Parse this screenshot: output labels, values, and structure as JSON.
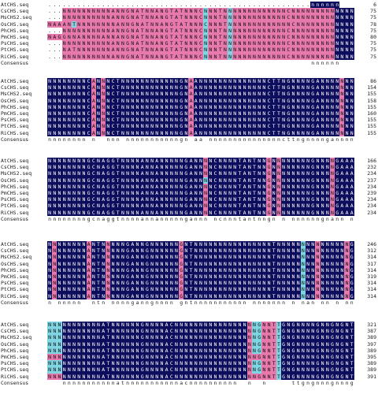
{
  "colors": {
    "identical": "#0d0d5e",
    "similar": "#e879ad",
    "partial": "#7fd6e3",
    "none": "#ffffff",
    "identical_text": "#ffffff",
    "other_text": "#111111"
  },
  "consensus_label": "Consensus",
  "blocks": [
    {
      "rows": [
        {
          "name": "AtCHS.seq",
          "seq": "......................................................nnnnnn",
          "end": "6"
        },
        {
          "name": "CsCHS.seq",
          "seq": "...NNNNNNNNNNANNGNATNNANGTATNNNCNNNTNNNNNNNNNNNNNCNNNNNNNNNNNNN",
          "end": "75"
        },
        {
          "name": "MsCHS2.seq",
          "seq": "...NNNNNNNNNNANNGNATNNANGTATNNNCNNNTNNNNNNNNNNNNNCNNNNNNNNNNNNN",
          "end": "75"
        },
        {
          "name": "OsCHS.seq",
          "seq": "NAAANTNNNNNNNNANNGNATNNANGTATNNNCNNNTNNNNNNNNNNNNNCNNNNNNNNNNNNN",
          "end": "78"
        },
        {
          "name": "PhCHS.seq",
          "seq": "...NNNNNNNNNNANNGNATNNANGTATNNNCNNNTNNNNNNNNNNNNNCNNNNNNNNNNNNN",
          "end": "75"
        },
        {
          "name": "PmCHS.seq",
          "seq": "NAGGNNANNNNANNANGNATNNANGTATNNNCNNNTNNNNNNNNNNNNNCNNNNNNNNNNNNN",
          "end": "80"
        },
        {
          "name": "PsCHS.seq",
          "seq": "...NNNNNNNNNNANNGNATNNANGTATNNNCNNNTNNNNNNNNNNNNNCNNNNNNNNNNNNN",
          "end": "75"
        },
        {
          "name": "PtCHS.seq",
          "seq": "...NATNNNNNNNANNGNATNNANGTATNNNCNNNTNNNNNNNNNNNNNCNNNNNNNNNNNNN",
          "end": "75"
        },
        {
          "name": "RiCHS.seq",
          "seq": "...NNNNNNNNNNANNGNATNNANGTATNNNCNNNTNNNNNNNNNNNNNCNNNNNNNNNNNNN",
          "end": "75"
        }
      ],
      "consensus": "                                                      nnnnnn",
      "pattern": [
        "......................................................IIIIII",
        "...PPPPPPPPPPPPPPPPPPPPPPPPPPPPPTPPPPTPPPPPPPPPPPPPPPPPPPPPIIIIII",
        "...PPPPPPPPPPPPPPPPPPPPPPPPPPPPPTPPPPTPPPPPPPPPPPPPPPPPPPPPIIIIII",
        "PPPPPTPPPPPPPPPPPPPPPPPPPPPPPPPPTPPPPTPPPPPPPPPPPPPPPPPPPPPIIIIII",
        "...PPPPPPPPPPPPPPPPPPPPPPPPPPPPPTPPPPTPPPPPPPPPPPPPPPPPPPPPIIIIII",
        "PPPPPPPPPPPPPPPPPPPPPPPPPPPPPPPPTPPPPTPPPPPPPPPPPPPPPPPPPPPIIIIII",
        "...PPPPPPPPPPPPPPPPPPPPPPPPPPPPPTPPPPTPPPPPPPPPPPPPPPPPPPPPIIIIII",
        "...PPPPPPPPPPPPPPPPPPPPPPPPPPPPPTPPPPTPPPPPPPPPPPPPPPPPPPPPIIIIII",
        "...PPPPPPPPPPPPPPPPPPPPPPPPPPPPPTPPPPTPPPPPPPPPPPPPPPPPPPPPIIIIII"
      ]
    },
    {
      "rows": [
        {
          "name": "AtCHS.seq",
          "seq": "NNNNNNNNCANNNCTNNNNNNNNNNNNGNAANNNNNNNNNNNNNNCTTNGNNNNGANNNNNNNNNNNN",
          "end": "86"
        },
        {
          "name": "CsCHS.seq",
          "seq": "NNNNNNNNCANNNCTNNNNNNNNNNNNGNAANNNNNNNNNNNNNNCTTNGNNNNGANNNNNNNNNNNN",
          "end": "154"
        },
        {
          "name": "MsCHS2.seq",
          "seq": "NNNNNNNNCANNNCTNNNNNNNNNNNNGNAANNNNNNNNNNNNNNCTTNGNNNNGANNNNNNNNNNNN",
          "end": "155"
        },
        {
          "name": "OsCHS.seq",
          "seq": "NNNNNNNNCANNNCTNNNNNNNNNNNNGNAANNNNNNNNNNNNNNCTTNGNNNNGANNNNNNNNNNNN",
          "end": "158"
        },
        {
          "name": "PhCHS.seq",
          "seq": "NNNNNNNNCANNNCTNNNNNNNNNNNNGNAANNNNNNNNNNNNNNCTTNGNNNNGANNNNNNNNNNNN",
          "end": "155"
        },
        {
          "name": "PmCHS.seq",
          "seq": "NNNNNNNNCANNNCTNNNNNNNNNNNNGNAANNNNNNNNNNNNNNCTTNGNNNNGANNNNNNNNNNNN",
          "end": "160"
        },
        {
          "name": "PsCHS.seq",
          "seq": "NNNNNNNNCANNNCTNNNNNNNNNNNNGNAANNNNNNNNNNNNNNCTTNGNNNNGANNNNNNNNNNNN",
          "end": "155"
        },
        {
          "name": "PtCHS.seq",
          "seq": "NNNNNNNNCANNNCTNNNNNNNNNNNNGNAANNNNNNNNNNNNNNCTTNGNNNNGANNNNNNNNNNNN",
          "end": "155"
        },
        {
          "name": "RiCHS.seq",
          "seq": "NNNNNNNNCANNNCTNNNNNNNNNNNNGNAANNNNNNNNNNNNNNCTTNGNNNNGANNNNNNNNNNNN",
          "end": "155"
        }
      ],
      "consensus": "nnnnnnnn n  nnn nnnnnnnnnnngn aa nnnnnnnnnnnnnnncttngnnnngannnnnnnnnnnn",
      "pattern": [
        "IIIIIIIIIPIPIIIIIIIIIIIIIIIIIPIIIIIIIIIIIIIIIIIIIIIIIIIIIIIIPIIIIIIIIII",
        "IIIIIIIIIPIPIIIIIIIIIIIIIIIIIPIIIIIIIIIIIIIIIIIIIIIIIIIIIIIIPIIIIIIIIII",
        "IIIIIIIIIPIPIIIIIIIIIIIIIIIIIPIIIIIIIIIIIIIIIIIIIIIIIIIIIIIIPIIIIIIIIII",
        "IIIIIIIIIPIPIIIIIIIIIIIIIIIIIPIIIIIIIIIIIIIIIIIIIIIIIIIIIIIIPIIIIIIIIII",
        "IIIIIIIIIPIPIIIIIIIIIIIIIIIIIPIIIIIIIIIIIIIIIIIIIIIIIIIIIIIIPIIIIIIIIII",
        "IIIIIIIIIPIPIIIIIIIIIIIIIIIIIPIIIIIIIIIIIIIIIIIIIIIIIIIIIIIIPIIIIIIIIII",
        "IIIIIIIIIPIPIIIIIIIIIIIIIIIIIPIIIIIIIIIIIIIIIIIIIIIIIIIIIIIIPIIIIIIIIII",
        "IIIIIIIIIPIPIIIIIIIIIIIIIIIIIPIIIIIIIIIIIIIIIIIIIIIIIIIIIIIIPIIIIIIIIII",
        "IIIIIIIIIPIPIIIIIIIIIIIIIIIIIPIIIIIIIIIIIIIIIIIIIIIIIIIIIIIIPIIIIIIIIII"
      ]
    },
    {
      "rows": [
        {
          "name": "AtCHS.seq",
          "seq": "NNNNNNNNGCNAGGTNNNNANNANNNNNGANNNNCNNNNTANTNNGNNNNNNNNGNNNNGAAANNNNCNNNN",
          "end": "166"
        },
        {
          "name": "CsCHS.seq",
          "seq": "NNNNNNNNGCNAGGTNNNNANNANNNNNGANNNNCNNNNTANTNNGNNNNNNNNGNNNNGAAANNNNCNNNN",
          "end": "232"
        },
        {
          "name": "MsCHS2.seq",
          "seq": "NNNNNNNNGCNAGGTNNNNANNANNNNNGANNNNCNNNNTANTNNGNNNNNNNNGNNNNGAAANNNNCNNNN",
          "end": "234"
        },
        {
          "name": "OsCHS.seq",
          "seq": "NNNNNNNNGCNAGGTNNNNANNANNNNNGANNNNCNNNNTANTNNGNNNNNNNNGNNNNGAAANNNNCNNNN",
          "end": "237"
        },
        {
          "name": "PhCHS.seq",
          "seq": "NNNNNNNNGCNAGGTNNNNANNANNNNNGANNNNCNNNNTANTNNGNNNNNNNNGNNNNGAAANNNNCNNNN",
          "end": "234"
        },
        {
          "name": "PmCHS.seq",
          "seq": "NNNNNNNNGCNAGGTNNNNANNANNNNNGANNNNCNNNNTANTNNGNNNNNNNNGNNNNGAAANNNNCNNNN",
          "end": "239"
        },
        {
          "name": "PsCHS.seq",
          "seq": "NNNNNNNNGCNAGGTNNNNANNANNNNNGANNNNCNNNNTANTNNGNNNNNNNNGNNNNGAAANNNNCNNNN",
          "end": "234"
        },
        {
          "name": "PtCHS.seq",
          "seq": "NNNNNNNNGCNAGGTNNNNANNANNNNNGANNNNCNNNNTANTNNGNNNNNNNNGNNNNGAAANNNNCNNNN",
          "end": "234"
        },
        {
          "name": "RiCHS.seq",
          "seq": "NNNNNNNNGCNAGGTNNNNANNANNNNNGANNNNCNNNNTANTNNGNNNNNNNNGNNNNGAAANNNNCNNNN",
          "end": "234"
        }
      ],
      "consensus": "nnnnnnnngcnaggtnnnnannannnnngannn ncnnntantnngn n nnnnnngnann ngaaannnn nnn nn",
      "pattern": [
        "IIIIIIIIIIIIIIIIIIIIIIIIIIIIIIIIPIIIIIIIIIIIIPIPIIIIIIIIIIPIIIIIIIIIPIIIPTI",
        "IIIIIIIIIIIIIIIIIIIIIIIIIIIIIIIIPIIIIIIIIIIIIPIPIIIIIIIIIIPIIIIIIIIIPIIIPTI",
        "IIIIIIIIIIIIIIIIIIIIIIIIIIIIIIIIPIIIIIIIIIIIIPIPIIIIIIIIIIPIIIIIIIIIPIIIPTI",
        "IIIIIIIIIIIIIIIIIIIIIIIIIIIIIIIITIIIIIIIIIIIIPIPIIIIIIIIIIPIIIIIIIIIPIIIPTI",
        "IIIIIIIIIIIIIIIIIIIIIIIIIIIIIIIIPIIIIIIIIIIIIPIPIIIIIIIIIIPIIIIIIIIIPIIIPTI",
        "IIIIIIIIIIIIIIIIIIIIIIIIIIIIIIIIPIIIIIIIIIIIIPIPIIIIIIIIIIPIIIIIIIIIPIIIPTI",
        "IIIIIIIIIIIIIIIIIIIIIIIIIIIIIIIIPIIIIIIIIIIIIPIPIIIIIIIIIIPIIIIIIIIITIIIPTI",
        "IIIIIIIIIIIIIIIIIIIIIIIIIIIIIIIIPIIIIIIIIIIIIPIPIIIIIIIIIIPIIIIIIIIIPIIIPTI",
        "IIIIIIIIIIIIIIIIIIIIIIIIIIIIIIIIPIIIIIIIIIIIIPIPIIIIIIIIIIPIIIIIIIIIPIIIPTI"
      ]
    },
    {
      "rows": [
        {
          "name": "AtCHS.seq",
          "seq": "NNNNNNNNANTNNNNNGANNGNNNNNNGNTNNNNNNNNNNNNNNNNTNNNNNNNNNNNNNNNGGNANNNNNNN",
          "end": "246"
        },
        {
          "name": "CsCHS.seq",
          "seq": "NNNNNNNNANTNNNNNGANNGNNNNNNGNTNNNNNNNNNNNNNNNNTNNNNNNNNNNNNNNNGGNANNNNNNN",
          "end": "312"
        },
        {
          "name": "MsCHS2.seq",
          "seq": "NNNNNNNNANTNNNNNGANNGNNNNNNGNTNNNNNNNNNNNNNNNNTNNNNNNNNNNNNNNNGGNANNNNNNN",
          "end": "314"
        },
        {
          "name": "OsCHS.seq",
          "seq": "NNNNNNNNANTNNNNNGANNGNNNNNNGNTNNNNNNNNNNNNNNNNTNNNNNNNNNNNNNNNGGNANNNNNNN",
          "end": "317"
        },
        {
          "name": "PhCHS.seq",
          "seq": "NNNNNNNNANTNNNNNGANNGNNNNNNGNTNNNNNNNNNNNNNNNNTNNNNNNNNNNNNNNNGGNANNNNNNN",
          "end": "314"
        },
        {
          "name": "PmCHS.seq",
          "seq": "NNNNNNNNANTNNNNNGANNGNNNNNNGNTNNNNNNNNNNNNNNNNTNNNNNNNNNNNNNNNGGNANNNNNNN",
          "end": "319"
        },
        {
          "name": "PsCHS.seq",
          "seq": "NNNNNNNNANTNNNNNGANNGNNNNNNGNTNNNNNNNNNNNNNNNNTNNNNNNNNNNNNNNNGGNANNNNNNN",
          "end": "314"
        },
        {
          "name": "PtCHS.seq",
          "seq": "NNNNNNNNANTNNNNNGANNGNNNNNNGNTNNNNNNNNNNNNNNNNTNNNNNNNNNNNNNNNGGNANNNNNNN",
          "end": "314"
        },
        {
          "name": "RiCHS.seq",
          "seq": "NNNNNNNNANTNNNNNGANNGNNNNNNGNTNNNNNNNNNNNNNNNNTNNNNNNNNNNNNNNNGGNANNNNNNN",
          "end": "314"
        }
      ],
      "consensus": "n nnnnn  ntn nnnnganngnnnn gntnnnnnnnnnnn nnnnnnn n nan nn n nnnnnnnnggnannnnnnn",
      "pattern": [
        "IPIIIIIIPIIIPIIIIIIIIIIIIIIPIIIIIIIIIIIIIIIIIIIIIIIITIIPIIIIIPITIIIIIIIIIIIII",
        "IPIIIIIIPIIIPIIIIIIIIIIIIIIPIIIIIIIIIIIIIIIIIIIIIIIITIIPIIIIIPITIIIIIIIIIIIII",
        "IPIIIIIIPIIIPIIIIIIIIIIIIIIPIIIIIIIIIIIIIIIIIIIIIIIITIIPIIIIIPITIIIIIIIIIIIII",
        "IPIIIIIIPIIIPIIIIIIIIIIIIIIPIIIIIIIIIIIIIIIIIIIIIIIITIIPIIIIIPITIIIIIIIIIIIII",
        "IPIIIIIIPIIIPIIIIIIIIIIIIIIPIIIIIIIIIIIIIIIIIIIIIIIITIIPIIIIIPITIIIIIIIIIIIII",
        "IPIIIIIIPIIIPIIIIIIIIIIIIIIPIIIIIIIIIIIIIIIIIIIIIIIITIIPIIIIIPITIIIIIIIIIIIII",
        "IPIIIIIIPIIIPIIIIIIIIIIIIIIPIIIIIIIIIIIIIIIIIIIIIIIITIIPIIIIIPITIIIIIIIIIIIII",
        "IPIIIIIIPIIIPIIIIIIIIIIIIIIPIIIIIIIIIIIIIIIIIIIIIIIITIIPIIIIIPITIIIIIIIIIIIII",
        "IPIIIIIIPIIIPIIIIIIIIIIIIIIPIIIIIIIIIIIIIIIIIIIIIIIITIIPIIIIIPITIIIIIIIIIIIII"
      ]
    },
    {
      "rows": [
        {
          "name": "AtCHS.seq",
          "seq": "NNNNNNNNNNNATNNNNNNGNNNNACNNNNNNNNNNNNNNNNNGNNTTGNGNNNNGNNGNGNTNNTNNNNNT...",
          "end": "321"
        },
        {
          "name": "CsCHS.seq",
          "seq": "NNNNNNNNNNNATNNNNNNGNNNNACNNNNNNNNNNNNNNNNNGNNTTGNGNNNNGNNGNGNTNNTNNNNNT...",
          "end": "387"
        },
        {
          "name": "MsCHS2.seq",
          "seq": "NNNNNNNNNNNATNNNNNNGNNNNACNNNNNNNNNNNNNNNNNGNNTTGNGNNNNGNNGNGNTNNTNNNNNT...",
          "end": "389"
        },
        {
          "name": "OsCHS.seq",
          "seq": "NNNNNNNNNNNATNNNNNNGNNNNACNNNNNNNNNNNNNNNNNGNNTTGNGNNNNGNNGNGNTNNTNNNNNTGAA",
          "end": "397"
        },
        {
          "name": "PhCHS.seq",
          "seq": "NNNNNNNNNNNATNNNNNNGNNNNACNNNNNNNNNNNNNNNNNGNNTTGNGNNNNGNNGNGNTNNTNNNNNT...",
          "end": "389"
        },
        {
          "name": "PmCHS.seq",
          "seq": "NNNNNNNNNNNATNNNNNNGNNNNACNNNNNNNNNNNNNNNNNGNNTTGNGNNNNGNNGNGNTNNTNNNNNNNNN",
          "end": "395"
        },
        {
          "name": "PsCHS.seq",
          "seq": "NNNNNNNNNNNATNNNNNNGNNNNACNNNNNNNNNNNNNNNNNGNNTTGNGNNNNGNNGNGNTNNTNNNNNT...",
          "end": "389"
        },
        {
          "name": "PtCHS.seq",
          "seq": "NNNNNNNNNNNATNNNNNNGNNNNACNNNNNNNNNNNNNNNNNGNNTTGNGNNNNGNNGNGNTNNTNNNNNT...",
          "end": "389"
        },
        {
          "name": "RiCHS.seq",
          "seq": "NNNNNNNNNNNATNNNNNNGNNNNACNNNNNNNNNNNNNNNNNGNNTTGNGNNNNGNNGNGNTNNTNNNNNAANT",
          "end": "391"
        }
      ],
      "consensus": "   nnnnnnnnnnnatnnnnnnnnnnnacnnnnnnnnnn  n  n     ttgngnnngnnngngngnnnntnnnnnnn",
      "pattern": [
        "TTTIIIIIIIIIIIIIIIIIIIIIIIIIIIIIIIIIIIIIIPTTPPPTIIIIIIIIIIIIIIIIIIIIIIIIIII...",
        "TTTIIIIIIIIIIIIIIIIIIIIIIIIIIIIIIIIIIIIIIPTTPPPTIIIIIIIIIIIIIIIIIIIIIIIIIII...",
        "TTTIIIIIIIIIIIIIIIIIIIIIIIIIIIIIIIIIIIIIIPTTPPPTIIIIIIIIIIIIIIIIIIIIIIIIIII...",
        "TTTIIIIIIIIIIIIIIIIIIIIIIIIIIIIIIIIIIIIIIPTTPPPTIIIIIIIIIIIIIIIIIIIIIIIIIIIPPP",
        "TTTIIIIIIIIIIIIIIIIIIIIIIIIIIIIIIIIIIIIIIPTTPPPTIIIIIIIIIIIIIIIIIIIIIIIIIII...",
        "PPPIIIIIIIIIIIIIIIIIIIIIIIIIIIIIIIIIIIIIIPPPPPPTIIIIIIIIIIIIIIIIIIIIIIIIIIIPPP",
        "TTTIIIIIIIIIIIIIIIIIIIIIIIIIIIIIIIIIIIIIIPTTPPPTIIIIIIIIIIIIIIIIIIIIIIIIIII...",
        "TTTIIIIIIIIIIIIIIIIIIIIIIIIIIIIIIIIIIIIIIPTTPPPTIIIIIIIIIIIIIIIIIIIIIIIIIII...",
        "PPPIIIIIIIIIIIIIIIIIIIIIIIIIIIIIIIIIIIIIIPPPPPPTIIIIIIIIIIIIIIIIIIIIIIIIIIIPPP"
      ]
    }
  ]
}
